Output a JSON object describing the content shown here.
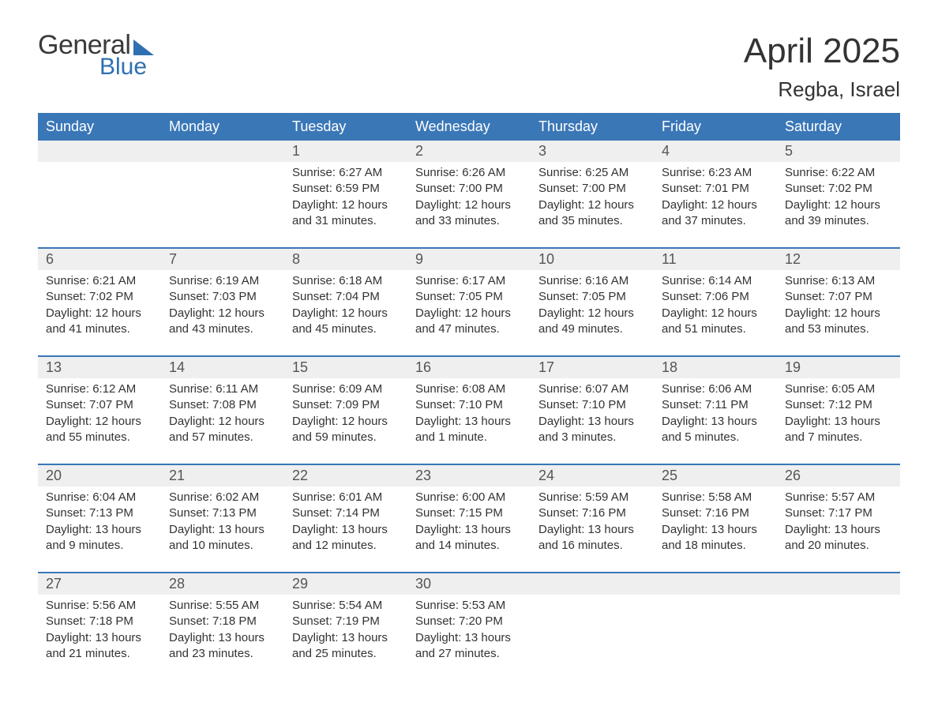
{
  "brand": {
    "word1": "General",
    "word2": "Blue"
  },
  "title": {
    "month": "April 2025",
    "location": "Regba, Israel"
  },
  "colors": {
    "header_bg": "#3a77b7",
    "header_text": "#ffffff",
    "daynum_bg": "#efefef",
    "daynum_text": "#555555",
    "body_text": "#333333",
    "week_border": "#3a77b7",
    "brand_accent": "#2f70b2",
    "page_bg": "#ffffff"
  },
  "typography": {
    "month_title_fontsize": 44,
    "location_fontsize": 26,
    "weekday_fontsize": 18,
    "daynum_fontsize": 18,
    "cell_fontsize": 15
  },
  "weekdays": [
    "Sunday",
    "Monday",
    "Tuesday",
    "Wednesday",
    "Thursday",
    "Friday",
    "Saturday"
  ],
  "weeks": [
    [
      null,
      null,
      {
        "n": "1",
        "sunrise": "Sunrise: 6:27 AM",
        "sunset": "Sunset: 6:59 PM",
        "daylight": "Daylight: 12 hours and 31 minutes."
      },
      {
        "n": "2",
        "sunrise": "Sunrise: 6:26 AM",
        "sunset": "Sunset: 7:00 PM",
        "daylight": "Daylight: 12 hours and 33 minutes."
      },
      {
        "n": "3",
        "sunrise": "Sunrise: 6:25 AM",
        "sunset": "Sunset: 7:00 PM",
        "daylight": "Daylight: 12 hours and 35 minutes."
      },
      {
        "n": "4",
        "sunrise": "Sunrise: 6:23 AM",
        "sunset": "Sunset: 7:01 PM",
        "daylight": "Daylight: 12 hours and 37 minutes."
      },
      {
        "n": "5",
        "sunrise": "Sunrise: 6:22 AM",
        "sunset": "Sunset: 7:02 PM",
        "daylight": "Daylight: 12 hours and 39 minutes."
      }
    ],
    [
      {
        "n": "6",
        "sunrise": "Sunrise: 6:21 AM",
        "sunset": "Sunset: 7:02 PM",
        "daylight": "Daylight: 12 hours and 41 minutes."
      },
      {
        "n": "7",
        "sunrise": "Sunrise: 6:19 AM",
        "sunset": "Sunset: 7:03 PM",
        "daylight": "Daylight: 12 hours and 43 minutes."
      },
      {
        "n": "8",
        "sunrise": "Sunrise: 6:18 AM",
        "sunset": "Sunset: 7:04 PM",
        "daylight": "Daylight: 12 hours and 45 minutes."
      },
      {
        "n": "9",
        "sunrise": "Sunrise: 6:17 AM",
        "sunset": "Sunset: 7:05 PM",
        "daylight": "Daylight: 12 hours and 47 minutes."
      },
      {
        "n": "10",
        "sunrise": "Sunrise: 6:16 AM",
        "sunset": "Sunset: 7:05 PM",
        "daylight": "Daylight: 12 hours and 49 minutes."
      },
      {
        "n": "11",
        "sunrise": "Sunrise: 6:14 AM",
        "sunset": "Sunset: 7:06 PM",
        "daylight": "Daylight: 12 hours and 51 minutes."
      },
      {
        "n": "12",
        "sunrise": "Sunrise: 6:13 AM",
        "sunset": "Sunset: 7:07 PM",
        "daylight": "Daylight: 12 hours and 53 minutes."
      }
    ],
    [
      {
        "n": "13",
        "sunrise": "Sunrise: 6:12 AM",
        "sunset": "Sunset: 7:07 PM",
        "daylight": "Daylight: 12 hours and 55 minutes."
      },
      {
        "n": "14",
        "sunrise": "Sunrise: 6:11 AM",
        "sunset": "Sunset: 7:08 PM",
        "daylight": "Daylight: 12 hours and 57 minutes."
      },
      {
        "n": "15",
        "sunrise": "Sunrise: 6:09 AM",
        "sunset": "Sunset: 7:09 PM",
        "daylight": "Daylight: 12 hours and 59 minutes."
      },
      {
        "n": "16",
        "sunrise": "Sunrise: 6:08 AM",
        "sunset": "Sunset: 7:10 PM",
        "daylight": "Daylight: 13 hours and 1 minute."
      },
      {
        "n": "17",
        "sunrise": "Sunrise: 6:07 AM",
        "sunset": "Sunset: 7:10 PM",
        "daylight": "Daylight: 13 hours and 3 minutes."
      },
      {
        "n": "18",
        "sunrise": "Sunrise: 6:06 AM",
        "sunset": "Sunset: 7:11 PM",
        "daylight": "Daylight: 13 hours and 5 minutes."
      },
      {
        "n": "19",
        "sunrise": "Sunrise: 6:05 AM",
        "sunset": "Sunset: 7:12 PM",
        "daylight": "Daylight: 13 hours and 7 minutes."
      }
    ],
    [
      {
        "n": "20",
        "sunrise": "Sunrise: 6:04 AM",
        "sunset": "Sunset: 7:13 PM",
        "daylight": "Daylight: 13 hours and 9 minutes."
      },
      {
        "n": "21",
        "sunrise": "Sunrise: 6:02 AM",
        "sunset": "Sunset: 7:13 PM",
        "daylight": "Daylight: 13 hours and 10 minutes."
      },
      {
        "n": "22",
        "sunrise": "Sunrise: 6:01 AM",
        "sunset": "Sunset: 7:14 PM",
        "daylight": "Daylight: 13 hours and 12 minutes."
      },
      {
        "n": "23",
        "sunrise": "Sunrise: 6:00 AM",
        "sunset": "Sunset: 7:15 PM",
        "daylight": "Daylight: 13 hours and 14 minutes."
      },
      {
        "n": "24",
        "sunrise": "Sunrise: 5:59 AM",
        "sunset": "Sunset: 7:16 PM",
        "daylight": "Daylight: 13 hours and 16 minutes."
      },
      {
        "n": "25",
        "sunrise": "Sunrise: 5:58 AM",
        "sunset": "Sunset: 7:16 PM",
        "daylight": "Daylight: 13 hours and 18 minutes."
      },
      {
        "n": "26",
        "sunrise": "Sunrise: 5:57 AM",
        "sunset": "Sunset: 7:17 PM",
        "daylight": "Daylight: 13 hours and 20 minutes."
      }
    ],
    [
      {
        "n": "27",
        "sunrise": "Sunrise: 5:56 AM",
        "sunset": "Sunset: 7:18 PM",
        "daylight": "Daylight: 13 hours and 21 minutes."
      },
      {
        "n": "28",
        "sunrise": "Sunrise: 5:55 AM",
        "sunset": "Sunset: 7:18 PM",
        "daylight": "Daylight: 13 hours and 23 minutes."
      },
      {
        "n": "29",
        "sunrise": "Sunrise: 5:54 AM",
        "sunset": "Sunset: 7:19 PM",
        "daylight": "Daylight: 13 hours and 25 minutes."
      },
      {
        "n": "30",
        "sunrise": "Sunrise: 5:53 AM",
        "sunset": "Sunset: 7:20 PM",
        "daylight": "Daylight: 13 hours and 27 minutes."
      },
      null,
      null,
      null
    ]
  ]
}
